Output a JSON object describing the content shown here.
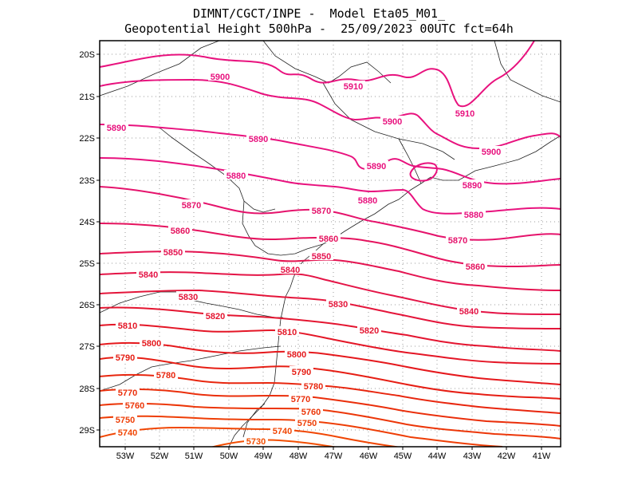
{
  "title_line1": "DIMNT/CGCT/INPE -  Model Eta05_M01_",
  "title_line2": "Geopotential Height 500hPa -  25/09/2023 00UTC fct=64h",
  "axes": {
    "lon_ticks": [
      "53W",
      "52W",
      "51W",
      "50W",
      "49W",
      "48W",
      "47W",
      "46W",
      "45W",
      "44W",
      "43W",
      "42W",
      "41W"
    ],
    "lat_ticks": [
      "20S",
      "21S",
      "22S",
      "23S",
      "24S",
      "25S",
      "26S",
      "27S",
      "28S",
      "29S"
    ]
  },
  "contour_labels": [
    {
      "text": "5910",
      "color": "#e8127e"
    },
    {
      "text": "5910",
      "color": "#e8127e"
    },
    {
      "text": "5900",
      "color": "#e8127e"
    },
    {
      "text": "5900",
      "color": "#e8127e"
    },
    {
      "text": "5900",
      "color": "#e8127e"
    },
    {
      "text": "5890",
      "color": "#e8127e"
    },
    {
      "text": "5890",
      "color": "#e8127e"
    },
    {
      "text": "5890",
      "color": "#e8127e"
    },
    {
      "text": "5890",
      "color": "#e8127e"
    },
    {
      "text": "5880",
      "color": "#e8127e"
    },
    {
      "text": "5880",
      "color": "#e8127e"
    },
    {
      "text": "5880",
      "color": "#e8127e"
    },
    {
      "text": "5870",
      "color": "#e5136c"
    },
    {
      "text": "5870",
      "color": "#e5136c"
    },
    {
      "text": "5870",
      "color": "#e5136c"
    },
    {
      "text": "5860",
      "color": "#e5135e"
    },
    {
      "text": "5860",
      "color": "#e5135e"
    },
    {
      "text": "5860",
      "color": "#e5135e"
    },
    {
      "text": "5850",
      "color": "#e41451"
    },
    {
      "text": "5850",
      "color": "#e41451"
    },
    {
      "text": "5840",
      "color": "#e41446"
    },
    {
      "text": "5840",
      "color": "#e41446"
    },
    {
      "text": "5840",
      "color": "#e41446"
    },
    {
      "text": "5830",
      "color": "#e4153a"
    },
    {
      "text": "5830",
      "color": "#e4153a"
    },
    {
      "text": "5820",
      "color": "#e41530"
    },
    {
      "text": "5820",
      "color": "#e41530"
    },
    {
      "text": "5810",
      "color": "#e41626"
    },
    {
      "text": "5810",
      "color": "#e41626"
    },
    {
      "text": "5800",
      "color": "#e5181c"
    },
    {
      "text": "5800",
      "color": "#e5181c"
    },
    {
      "text": "5790",
      "color": "#e61e14"
    },
    {
      "text": "5790",
      "color": "#e61e14"
    },
    {
      "text": "5780",
      "color": "#e8260e"
    },
    {
      "text": "5780",
      "color": "#e8260e"
    },
    {
      "text": "5770",
      "color": "#ea2e0a"
    },
    {
      "text": "5770",
      "color": "#ea2e0a"
    },
    {
      "text": "5760",
      "color": "#ec3608"
    },
    {
      "text": "5760",
      "color": "#ec3608"
    },
    {
      "text": "5750",
      "color": "#ee3e06"
    },
    {
      "text": "5750",
      "color": "#ee3e06"
    },
    {
      "text": "5740",
      "color": "#f04604"
    },
    {
      "text": "5740",
      "color": "#f04604"
    },
    {
      "text": "5730",
      "color": "#f24e02"
    }
  ]
}
